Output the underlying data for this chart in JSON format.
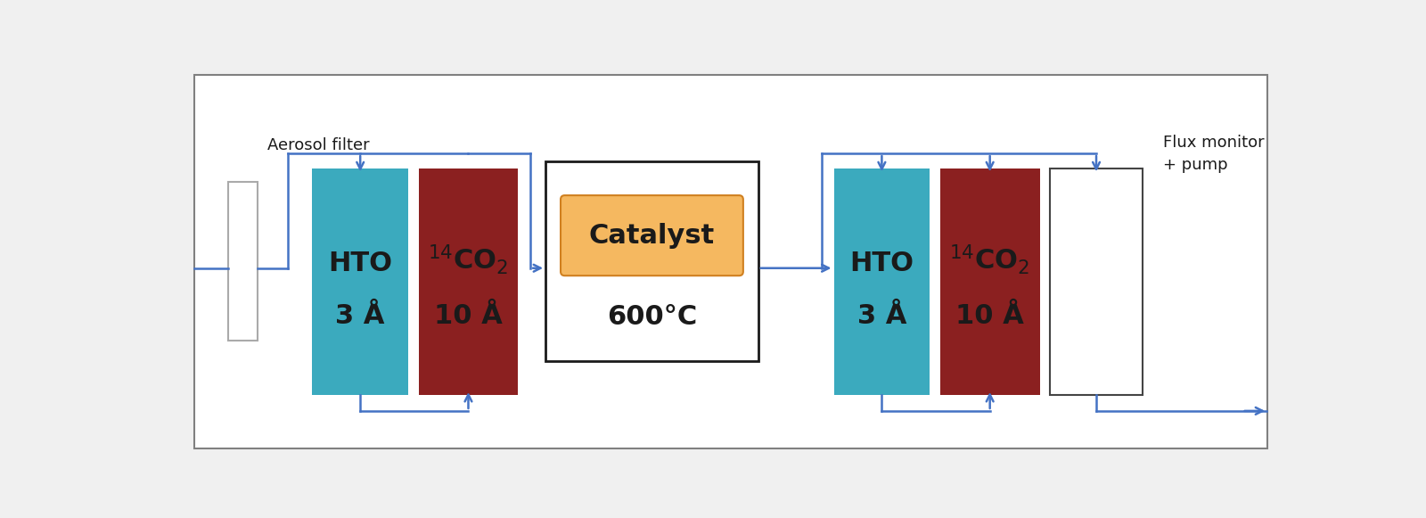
{
  "bg_color": "#f0f0f0",
  "border_color": "#808080",
  "blue_color": "#3baabe",
  "red_color": "#8b2020",
  "orange_fill": "#f5b860",
  "orange_edge": "#d08020",
  "arrow_color": "#4472c4",
  "text_color": "#1a1a1a",
  "white_color": "#ffffff",
  "gray_edge": "#999999",
  "aerosol_label": "Aerosol filter",
  "flux_label": "Flux monitor\n+ pump",
  "catalyst_label": "Catalyst",
  "catalyst_temp": "600°C",
  "hto_line1": "HTO",
  "hto_line2": "3 Å",
  "figsize": [
    16.0,
    5.81
  ],
  "dpi": 100
}
